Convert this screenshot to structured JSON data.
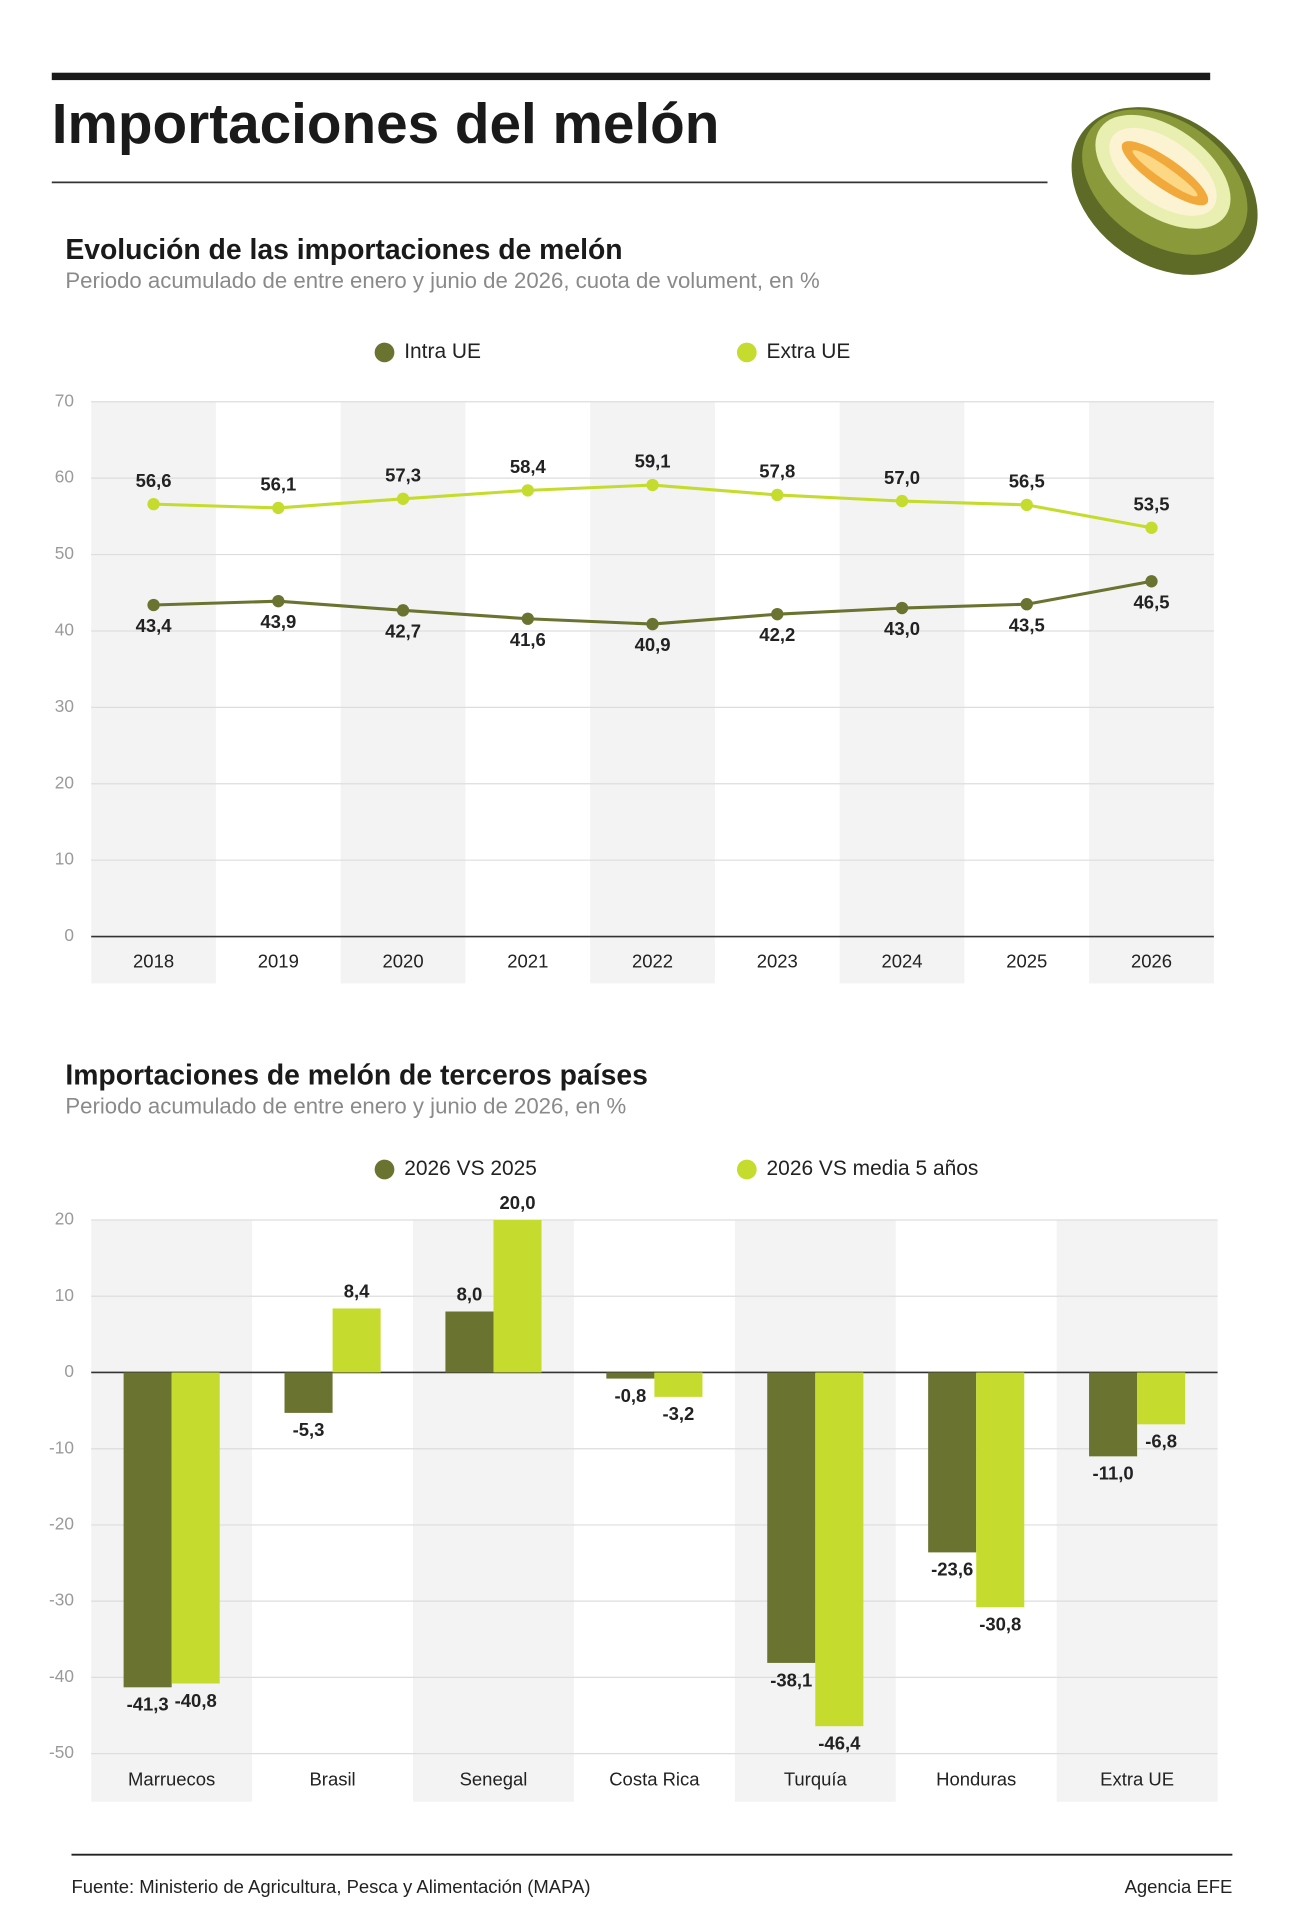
{
  "header": {
    "title": "Importaciones del melón"
  },
  "chart_data": [
    {
      "type": "line",
      "title": "Evolución de las importaciones de melón",
      "subtitle": "Periodo acumulado de entre enero y junio de 2026, cuota de volument, en %",
      "categories": [
        "2018",
        "2019",
        "2020",
        "2021",
        "2022",
        "2023",
        "2024",
        "2025",
        "2026"
      ],
      "series": [
        {
          "name": "Intra UE",
          "color": "#6b7330",
          "values": [
            43.4,
            43.9,
            42.7,
            41.6,
            40.9,
            42.2,
            43.0,
            43.5,
            46.5
          ],
          "value_labels": [
            "43,4",
            "43,9",
            "42,7",
            "41,6",
            "40,9",
            "42,2",
            "43,0",
            "43,5",
            "46,5"
          ]
        },
        {
          "name": "Extra UE",
          "color": "#c5dc2e",
          "values": [
            56.6,
            56.1,
            57.3,
            58.4,
            59.1,
            57.8,
            57.0,
            56.5,
            53.5
          ],
          "value_labels": [
            "56,6",
            "56,1",
            "57,3",
            "58,4",
            "59,1",
            "57,8",
            "57,0",
            "56,5",
            "53,5"
          ]
        }
      ],
      "ylim": [
        0,
        70
      ],
      "yticks": [
        0,
        10,
        20,
        30,
        40,
        50,
        60,
        70
      ],
      "grid": true
    },
    {
      "type": "bar",
      "title": "Importaciones de melón de terceros países",
      "subtitle": "Periodo acumulado de entre enero y junio de 2026, en %",
      "categories": [
        "Marruecos",
        "Brasil",
        "Senegal",
        "Costa Rica",
        "Turquía",
        "Honduras",
        "Extra UE"
      ],
      "series": [
        {
          "name": "2026 VS 2025",
          "color": "#6b7330",
          "values": [
            -41.3,
            -5.3,
            8.0,
            -0.8,
            -38.1,
            -23.6,
            -11.0
          ],
          "value_labels": [
            "-41,3",
            "-5,3",
            "8,0",
            "-0,8",
            "-38,1",
            "-23,6",
            "-11,0"
          ]
        },
        {
          "name": "2026 VS media 5 años",
          "color": "#c5dc2e",
          "values": [
            -40.8,
            8.4,
            20.0,
            -3.2,
            -46.4,
            -30.8,
            -6.8
          ],
          "value_labels": [
            "-40,8",
            "8,4",
            "20,0",
            "-3,2",
            "-46,4",
            "-30,8",
            "-6,8"
          ]
        }
      ],
      "ylim": [
        -50,
        20
      ],
      "yticks": [
        -50,
        -40,
        -30,
        -20,
        -10,
        0,
        10,
        20
      ],
      "grid": true
    }
  ],
  "footer": {
    "source": "Fuente: Ministerio de Agricultura, Pesca y Alimentación (MAPA)",
    "credit": "Agencia EFE"
  }
}
